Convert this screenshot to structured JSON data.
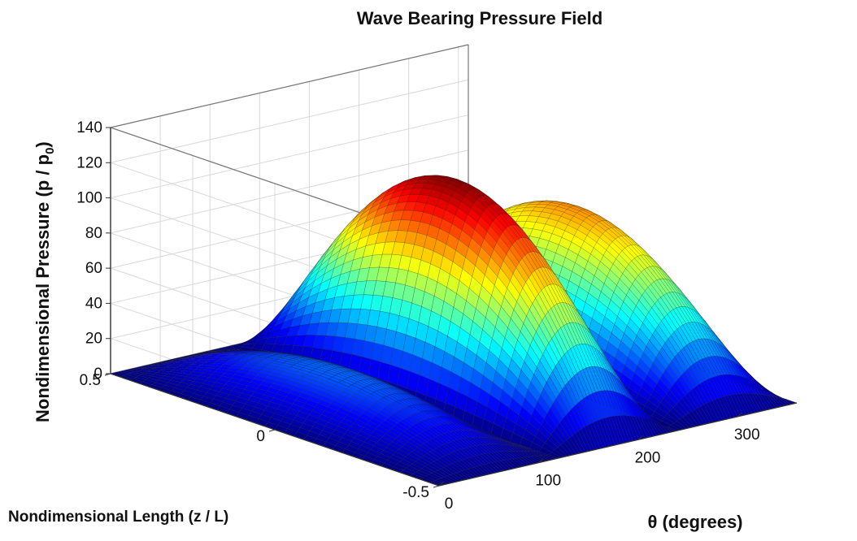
{
  "chart_data": {
    "type": "surface",
    "title": "Wave Bearing Pressure Field",
    "xlabel": "θ (degrees)",
    "ylabel": "Nondimensional Length (z / L)",
    "zlabel_main": "Nondimensional Pressure (p / p",
    "zlabel_sub": "0",
    "zlabel_end": ")",
    "x_range": [
      0,
      360
    ],
    "y_range": [
      -0.5,
      0.5
    ],
    "z_range": [
      0,
      140
    ],
    "x_ticks": [
      0,
      100,
      200,
      300
    ],
    "y_ticks": [
      -0.5,
      0,
      0.5
    ],
    "z_ticks": [
      0,
      20,
      40,
      60,
      80,
      100,
      120,
      140
    ],
    "grid": true,
    "colormap": "jet",
    "lobes": [
      {
        "theta_start": 0,
        "theta_end": 120,
        "peak": 27
      },
      {
        "theta_start": 120,
        "theta_end": 240,
        "peak": 119
      },
      {
        "theta_start": 240,
        "theta_end": 360,
        "peak": 88
      }
    ]
  }
}
